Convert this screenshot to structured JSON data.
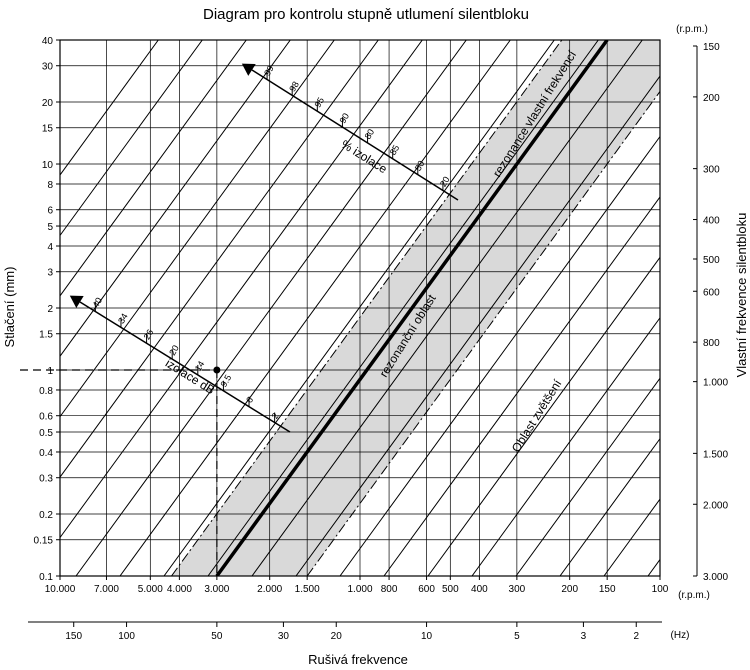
{
  "title": "Diagram pro kontrolu stupně utlumení silentbloku",
  "ylabel_left": "Stlačení (mm)",
  "ylabel_right": "Vlastní frekvence silentbloku",
  "xlabel": "Rušivá frekvence",
  "unit_rpm": "(r.p.m.)",
  "unit_hz": "(Hz)",
  "chart_data": {
    "type": "line",
    "x_axis_rpm": {
      "range": [
        10000,
        100
      ],
      "scale": "log",
      "ticks": [
        {
          "v": 10000,
          "label": "10.000"
        },
        {
          "v": 7000,
          "label": "7.000"
        },
        {
          "v": 5000,
          "label": "5.000"
        },
        {
          "v": 4000,
          "label": "4.000"
        },
        {
          "v": 3000,
          "label": "3.000"
        },
        {
          "v": 2000,
          "label": "2.000"
        },
        {
          "v": 1500,
          "label": "1.500"
        },
        {
          "v": 1000,
          "label": "1.000"
        },
        {
          "v": 800,
          "label": "800"
        },
        {
          "v": 600,
          "label": "600"
        },
        {
          "v": 500,
          "label": "500"
        },
        {
          "v": 400,
          "label": "400"
        },
        {
          "v": 300,
          "label": "300"
        },
        {
          "v": 200,
          "label": "200"
        },
        {
          "v": 150,
          "label": "150"
        },
        {
          "v": 100,
          "label": "100"
        }
      ]
    },
    "x_axis_hz": {
      "scale": "log",
      "ticks": [
        {
          "v": 150,
          "label": "150"
        },
        {
          "v": 100,
          "label": "100"
        },
        {
          "v": 50,
          "label": "50"
        },
        {
          "v": 30,
          "label": "30"
        },
        {
          "v": 20,
          "label": "20"
        },
        {
          "v": 10,
          "label": "10"
        },
        {
          "v": 5,
          "label": "5"
        },
        {
          "v": 3,
          "label": "3"
        },
        {
          "v": 2,
          "label": "2"
        }
      ]
    },
    "y_axis_left": {
      "range": [
        0.1,
        40
      ],
      "scale": "log",
      "ticks": [
        {
          "v": 40,
          "label": "40"
        },
        {
          "v": 30,
          "label": "30"
        },
        {
          "v": 20,
          "label": "20"
        },
        {
          "v": 15,
          "label": "15"
        },
        {
          "v": 10,
          "label": "10"
        },
        {
          "v": 8,
          "label": "8"
        },
        {
          "v": 6,
          "label": "6"
        },
        {
          "v": 5,
          "label": "5"
        },
        {
          "v": 4,
          "label": "4"
        },
        {
          "v": 3,
          "label": "3"
        },
        {
          "v": 2,
          "label": "2"
        },
        {
          "v": 1.5,
          "label": "1.5"
        },
        {
          "v": 1,
          "label": "1"
        },
        {
          "v": 0.8,
          "label": "0.8"
        },
        {
          "v": 0.6,
          "label": "0.6"
        },
        {
          "v": 0.5,
          "label": "0.5"
        },
        {
          "v": 0.4,
          "label": "0.4"
        },
        {
          "v": 0.3,
          "label": "0.3"
        },
        {
          "v": 0.2,
          "label": "0.2"
        },
        {
          "v": 0.15,
          "label": "0.15"
        },
        {
          "v": 0.1,
          "label": "0.1"
        }
      ]
    },
    "y_axis_right_rpm": {
      "scale": "log",
      "ticks": [
        {
          "v": 150,
          "label": "150"
        },
        {
          "v": 200,
          "label": "200"
        },
        {
          "v": 300,
          "label": "300"
        },
        {
          "v": 400,
          "label": "400"
        },
        {
          "v": 500,
          "label": "500"
        },
        {
          "v": 600,
          "label": "600"
        },
        {
          "v": 800,
          "label": "800"
        },
        {
          "v": 1000,
          "label": "1.000"
        },
        {
          "v": 1500,
          "label": "1.500"
        },
        {
          "v": 2000,
          "label": "2.000"
        },
        {
          "v": 3000,
          "label": "3.000"
        }
      ]
    },
    "resonance_line": {
      "rpm_at_0_1mm": 3000,
      "rpm_at_40mm": 150
    },
    "region_edges": {
      "left_rpm_at_0_1mm": 4250,
      "right_rpm_at_0_1mm": 1500
    },
    "isolation_pct_scale": {
      "label": "% izolace",
      "ticks": [
        "99",
        "98",
        "95",
        "90",
        "80",
        "85",
        "50",
        "20"
      ]
    },
    "isolation_db_scale": {
      "label": "izolace dB",
      "ticks": [
        "40",
        "34",
        "26",
        "20",
        "14",
        "9.5",
        "6",
        "2"
      ]
    },
    "example_point": {
      "rpm": 3000,
      "deflection_mm": 1
    },
    "regions": {
      "resonance_line_label": "rezonance vlastní frekvencí",
      "resonance_region_label": "rezonanční oblast",
      "amplification_label": "Oblast zvětšení"
    }
  }
}
